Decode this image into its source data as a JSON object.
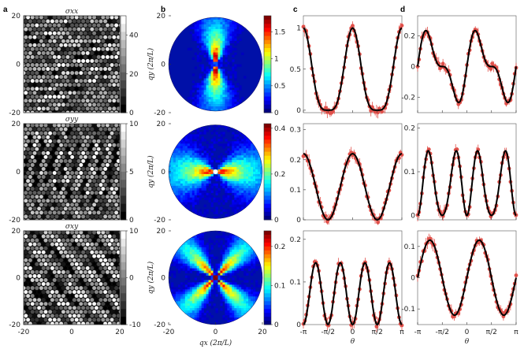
{
  "panel_labels": [
    "a",
    "b",
    "c",
    "d"
  ],
  "colors": {
    "data": "#e0504a",
    "fit": "#000000",
    "axis": "#222222"
  },
  "chart_data": [
    {
      "type": "heatmap",
      "panel": "a",
      "rows": [
        {
          "title": "σxx",
          "colorbar_ticks": [
            "0",
            "20",
            "40"
          ],
          "clim": [
            0,
            50
          ]
        },
        {
          "title": "σyy",
          "colorbar_ticks": [
            "0",
            "5",
            "10"
          ],
          "clim": [
            0,
            10
          ]
        },
        {
          "title": "σxy",
          "colorbar_ticks": [
            "-10",
            "0",
            "10"
          ],
          "clim": [
            -10,
            10
          ]
        }
      ],
      "x_ticks": [
        "-20",
        "0",
        "20"
      ],
      "y_ticks": [
        "20",
        "0",
        "-20"
      ],
      "colormap": "gray"
    },
    {
      "type": "heatmap",
      "panel": "b",
      "rows": [
        {
          "colorbar_ticks": [
            "0",
            "0.5",
            "1",
            "1.5"
          ],
          "clim": [
            0,
            1.8
          ],
          "pattern": "hourglass"
        },
        {
          "colorbar_ticks": [
            "0",
            "0.2",
            "0.4"
          ],
          "clim": [
            0,
            0.42
          ],
          "pattern": "bowtie"
        },
        {
          "colorbar_ticks": [
            "0",
            "0.1",
            "0.2"
          ],
          "clim": [
            0,
            0.24
          ],
          "pattern": "cross"
        }
      ],
      "x_ticks": [
        "-20",
        "0",
        "20"
      ],
      "y_ticks": [
        "20",
        "0",
        "-20"
      ],
      "xlabel": "qx (2π/L)",
      "ylabel": "qy (2π/L)",
      "colormap": "jet"
    },
    {
      "type": "scatter",
      "panel": "c",
      "xlabel": "θ",
      "x_ticks": [
        "-π",
        "-π/2",
        "0",
        "π/2",
        "π"
      ],
      "rows": [
        {
          "yticks": [
            "0",
            "0.5",
            "1"
          ],
          "ylim": [
            -0.03,
            1.15
          ],
          "fit": "cos^4(θ)"
        },
        {
          "yticks": [
            "0",
            "0.1",
            "0.2",
            "0.3"
          ],
          "ylim": [
            0,
            0.32
          ],
          "fit": "0.22·cos^2(θ)"
        },
        {
          "yticks": [
            "0",
            "0.1",
            "0.2"
          ],
          "ylim": [
            0,
            0.22
          ],
          "fit": "0.145·sin^2(2θ)"
        }
      ]
    },
    {
      "type": "scatter",
      "panel": "d",
      "xlabel": "θ",
      "x_ticks": [
        "-π",
        "-π/2",
        "0",
        "π/2",
        "π"
      ],
      "rows": [
        {
          "yticks": [
            "-0.2",
            "0",
            "0.2"
          ],
          "ylim": [
            -0.3,
            0.33
          ],
          "fit": "0.25·sin(2θ)·cos^2(θ)"
        },
        {
          "yticks": [
            "0",
            "0.1",
            "0.2"
          ],
          "ylim": [
            -0.01,
            0.21
          ],
          "fit": "0.14·sin^2(2θ)·cos^2(θ)"
        },
        {
          "yticks": [
            "-0.1",
            "0",
            "0.1"
          ],
          "ylim": [
            -0.15,
            0.15
          ],
          "fit": "0.12·sin(2θ)"
        }
      ]
    }
  ]
}
